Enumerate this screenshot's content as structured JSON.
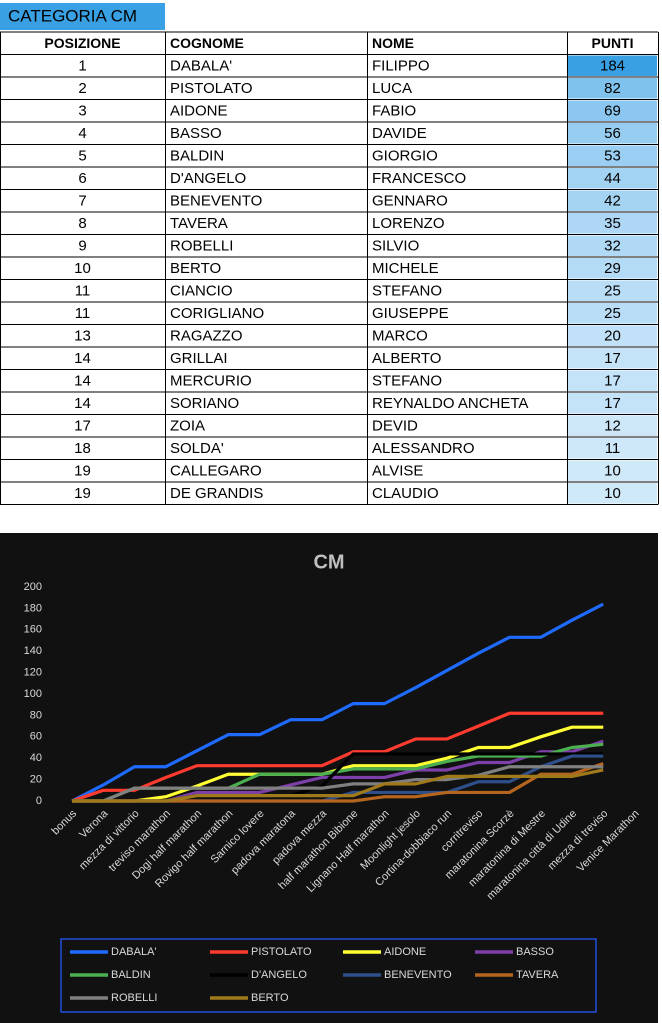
{
  "table": {
    "title": "CATEGORIA CM",
    "header": [
      "POSIZIONE",
      "COGNOME",
      "NOME",
      "PUNTI"
    ],
    "rows": [
      [
        1,
        "DABALA'",
        "FILIPPO",
        184
      ],
      [
        2,
        "PISTOLATO",
        "LUCA",
        82
      ],
      [
        3,
        "AIDONE",
        "FABIO",
        69
      ],
      [
        4,
        "BASSO",
        "DAVIDE",
        56
      ],
      [
        5,
        "BALDIN",
        "GIORGIO",
        53
      ],
      [
        6,
        "D'ANGELO",
        "FRANCESCO",
        44
      ],
      [
        7,
        "BENEVENTO",
        "GENNARO",
        42
      ],
      [
        8,
        "TAVERA",
        "LORENZO",
        35
      ],
      [
        9,
        "ROBELLI",
        "SILVIO",
        32
      ],
      [
        10,
        "BERTO",
        "MICHELE",
        29
      ],
      [
        11,
        "CIANCIO",
        "STEFANO",
        25
      ],
      [
        11,
        "CORIGLIANO",
        "GIUSEPPE",
        25
      ],
      [
        13,
        "RAGAZZO",
        "MARCO",
        20
      ],
      [
        14,
        "GRILLAI",
        "ALBERTO",
        17
      ],
      [
        14,
        "MERCURIO",
        "STEFANO",
        17
      ],
      [
        14,
        "SORIANO",
        "REYNALDO ANCHETA",
        17
      ],
      [
        17,
        "ZOIA",
        "DEVID",
        12
      ],
      [
        18,
        "SOLDA'",
        "ALESSANDRO",
        11
      ],
      [
        19,
        "CALLEGARO",
        "ALVISE",
        10
      ],
      [
        19,
        "DE GRANDIS",
        "CLAUDIO",
        10
      ]
    ]
  },
  "chart_data": {
    "type": "line",
    "title": "CM",
    "categories": [
      "bonus",
      "Verona",
      "mezza di vittorio",
      "treviso marathon",
      "Dogi half marathon",
      "Rovigo half marathon",
      "Sarnico lovere",
      "padova maratona",
      "padova mezza",
      "half marathon Bibione",
      "Lignano Half marathon",
      "Moonlight jesolo",
      "Cortina-dobbiaco run",
      "corritreviso",
      "maratonina Scorzè",
      "maratonina di Mestre",
      "maratonina città di Udine",
      "mezza di treviso",
      "Venice Marathon"
    ],
    "ylim": [
      0,
      200
    ],
    "yticks": [
      0,
      20,
      40,
      60,
      80,
      100,
      120,
      140,
      160,
      180,
      200
    ],
    "grid": false,
    "series": [
      {
        "name": "DABALA'",
        "color": "#1f6bff",
        "values": [
          0,
          15,
          32,
          32,
          47,
          62,
          62,
          76,
          76,
          91,
          91,
          106,
          122,
          138,
          153,
          153,
          169,
          184,
          null
        ]
      },
      {
        "name": "PISTOLATO",
        "color": "#ff3b2f",
        "values": [
          0,
          10,
          10,
          22,
          33,
          33,
          33,
          33,
          33,
          46,
          46,
          58,
          58,
          70,
          82,
          82,
          82,
          82,
          null
        ]
      },
      {
        "name": "AIDONE",
        "color": "#ffff33",
        "values": [
          0,
          0,
          0,
          4,
          14,
          25,
          25,
          25,
          25,
          33,
          33,
          33,
          40,
          50,
          50,
          60,
          69,
          69,
          null
        ]
      },
      {
        "name": "BASSO",
        "color": "#7d3fa8",
        "values": [
          0,
          0,
          0,
          0,
          8,
          8,
          8,
          15,
          22,
          22,
          22,
          29,
          29,
          36,
          36,
          46,
          46,
          56,
          null
        ]
      },
      {
        "name": "BALDIN",
        "color": "#4caf50",
        "values": [
          0,
          0,
          12,
          12,
          12,
          12,
          25,
          25,
          25,
          30,
          30,
          30,
          37,
          42,
          42,
          42,
          50,
          53,
          null
        ]
      },
      {
        "name": "D'ANGELO",
        "color": "#000000",
        "values": [
          0,
          0,
          0,
          0,
          5,
          5,
          5,
          5,
          14,
          44,
          44,
          44,
          44,
          44,
          44,
          44,
          44,
          44,
          null
        ]
      },
      {
        "name": "BENEVENTO",
        "color": "#2f4f8a",
        "values": [
          0,
          0,
          0,
          0,
          0,
          0,
          0,
          0,
          0,
          8,
          8,
          8,
          8,
          18,
          18,
          32,
          42,
          42,
          null
        ]
      },
      {
        "name": "TAVERA",
        "color": "#b5651d",
        "values": [
          0,
          0,
          0,
          0,
          0,
          0,
          0,
          0,
          0,
          0,
          4,
          4,
          8,
          8,
          8,
          25,
          25,
          35,
          null
        ]
      },
      {
        "name": "ROBELLI",
        "color": "#808080",
        "values": [
          0,
          0,
          12,
          12,
          12,
          12,
          12,
          12,
          12,
          16,
          16,
          20,
          20,
          24,
          32,
          32,
          32,
          32,
          null
        ]
      },
      {
        "name": "BERTO",
        "color": "#a07a1a",
        "values": [
          0,
          0,
          0,
          0,
          5,
          5,
          5,
          5,
          5,
          5,
          16,
          16,
          23,
          23,
          23,
          23,
          23,
          29,
          null
        ]
      }
    ]
  }
}
